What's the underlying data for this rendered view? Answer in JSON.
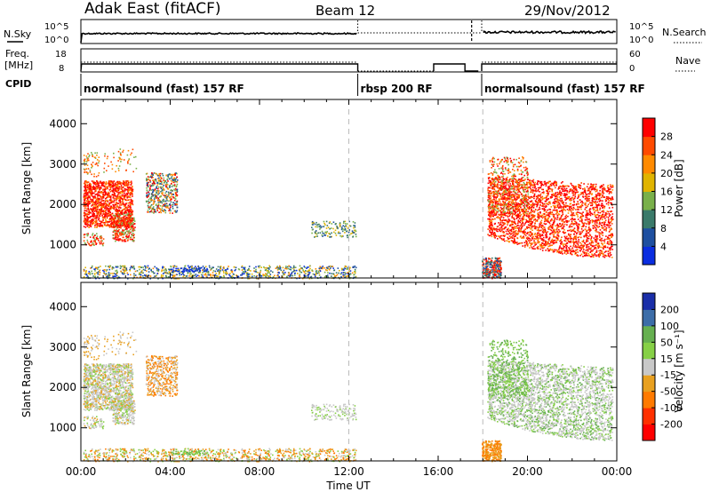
{
  "header": {
    "title": "Adak East (fitACF)",
    "beam": "Beam 12",
    "date": "29/Nov/2012"
  },
  "panels": {
    "nsky_label": "N.Sky",
    "nsearch_label": "N.Search",
    "freq_label_1": "Freq.",
    "freq_label_2": "[MHz]",
    "nave_label": "Nave",
    "cpid_label": "CPID",
    "nsky_ticks": [
      "10^5",
      "10^0"
    ],
    "nsearch_ticks": [
      "10^5",
      "10^0"
    ],
    "freq_ticks": [
      "18",
      "8"
    ],
    "nave_ticks": [
      "60",
      "0"
    ]
  },
  "cpid_segments": [
    {
      "label": "normalsound (fast) 157 RF",
      "start": 0,
      "end": 12.4
    },
    {
      "label": "rbsp 200 RF",
      "start": 12.4,
      "end": 17.95
    },
    {
      "label": "normalsound (fast) 157 RF",
      "start": 17.95,
      "end": 24
    }
  ],
  "axes": {
    "xlabel": "Time UT",
    "ylabel": "Slant Range [km]",
    "x_ticks": [
      "00:00",
      "04:00",
      "08:00",
      "12:00",
      "16:00",
      "20:00",
      "00:00"
    ],
    "y_ticks": [
      "1000",
      "2000",
      "3000",
      "4000"
    ]
  },
  "colorbars": {
    "power": {
      "label": "Power [dB]",
      "ticks": [
        "4",
        "8",
        "12",
        "16",
        "20",
        "24",
        "28"
      ],
      "colors": [
        "#0a2de0",
        "#1e4fa0",
        "#3a7a6a",
        "#79b04a",
        "#e0b400",
        "#ff8a00",
        "#ff4a00",
        "#ff0000"
      ]
    },
    "velocity": {
      "label": "Velocity [m s⁻¹]",
      "ticks": [
        "200",
        "100",
        "50",
        "15",
        "-15",
        "-50",
        "-100",
        "-200"
      ],
      "colors": [
        "#1a2ea8",
        "#3c6da8",
        "#66b050",
        "#86d046",
        "#c8c8c8",
        "#e8a020",
        "#ff7a00",
        "#ff3000",
        "#ff0000"
      ]
    }
  },
  "chart_data": {
    "type": "heatmap",
    "x_range_hours": [
      0,
      24
    ],
    "y_range_km": [
      180,
      4600
    ],
    "dashed_time_markers_hours": [
      12,
      18
    ],
    "data_gap_hours": [
      12.4,
      17.95
    ],
    "scatter_regions": [
      {
        "description_time": [
          0.1,
          2.2
        ],
        "range_km": [
          1500,
          2600
        ],
        "power_db": "24-28",
        "velocity": "-15 to 15"
      },
      {
        "description_time": [
          2.9,
          4.3
        ],
        "range_km": [
          1800,
          2700
        ],
        "power_db": "8-24",
        "velocity": "-50 to 15"
      },
      {
        "description_time": [
          18.2,
          23.8
        ],
        "range_km": [
          800,
          3000
        ],
        "power_db": "24-28",
        "velocity": "-15 to 50"
      }
    ]
  }
}
